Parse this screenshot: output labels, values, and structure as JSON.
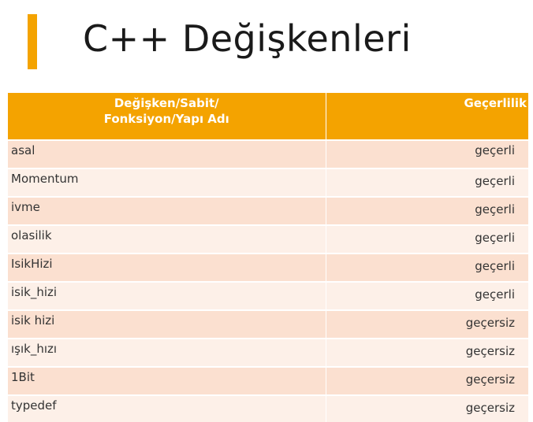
{
  "slide": {
    "title": "C++ Değişkenleri",
    "accent_color": "#f4a300"
  },
  "table": {
    "header": {
      "name_line1": "Değişken/Sabit/",
      "name_line2": "Fonksiyon/Yapı Adı",
      "validity": "Geçerlilik"
    },
    "rows": [
      {
        "name": "asal",
        "validity": "geçerli"
      },
      {
        "name": "Momentum",
        "validity": "geçerli"
      },
      {
        "name": "ivme",
        "validity": "geçerli"
      },
      {
        "name": "olasilik",
        "validity": "geçerli"
      },
      {
        "name": "IsikHizi",
        "validity": "geçerli"
      },
      {
        "name": "isik_hizi",
        "validity": "geçerli"
      },
      {
        "name": "isik hizi",
        "validity": "geçersiz"
      },
      {
        "name": "ışık_hızı",
        "validity": "geçersiz"
      },
      {
        "name": "1Bit",
        "validity": "geçersiz"
      },
      {
        "name": "typedef",
        "validity": "geçersiz"
      }
    ]
  }
}
